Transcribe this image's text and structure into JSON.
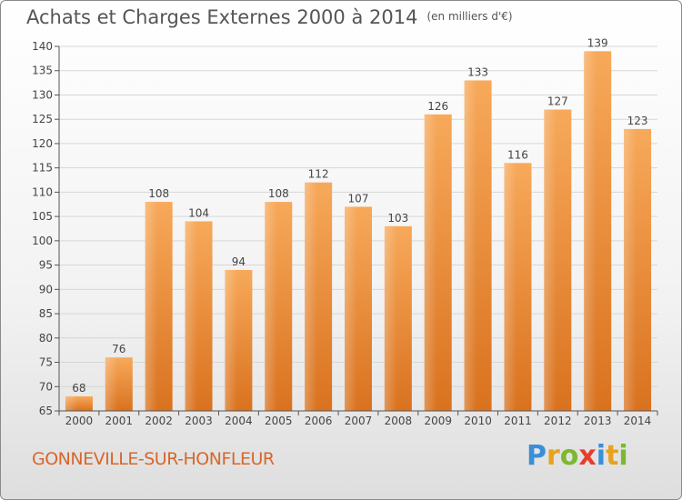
{
  "header": {
    "title": "Achats et Charges Externes 2000 à 2014",
    "unit": "(en milliers d'€)"
  },
  "footer": {
    "commune": "GONNEVILLE-SUR-HONFLEUR",
    "brand": [
      "P",
      "r",
      "o",
      "x",
      "i",
      "t",
      "i"
    ],
    "brand_colors": [
      "#3a8fd6",
      "#e8a21e",
      "#7db82e",
      "#e83c2c",
      "#3a8fd6",
      "#e8a21e",
      "#7db82e"
    ]
  },
  "chart_data": {
    "type": "bar",
    "title": "Achats et Charges Externes 2000 à 2014",
    "categories": [
      "2000",
      "2001",
      "2002",
      "2003",
      "2004",
      "2005",
      "2006",
      "2007",
      "2008",
      "2009",
      "2010",
      "2011",
      "2012",
      "2013",
      "2014"
    ],
    "values": [
      68,
      76,
      108,
      104,
      94,
      108,
      112,
      107,
      103,
      126,
      133,
      116,
      127,
      139,
      123
    ],
    "ylim": [
      65,
      140
    ],
    "yticks": [
      65,
      70,
      75,
      80,
      85,
      90,
      95,
      100,
      105,
      110,
      115,
      120,
      125,
      130,
      135,
      140
    ],
    "xlabel": "",
    "ylabel": "",
    "grid": true,
    "bar_color": "#f0913a",
    "bar_color_light": "#f7b46a",
    "bar_color_dark": "#d9701e"
  }
}
